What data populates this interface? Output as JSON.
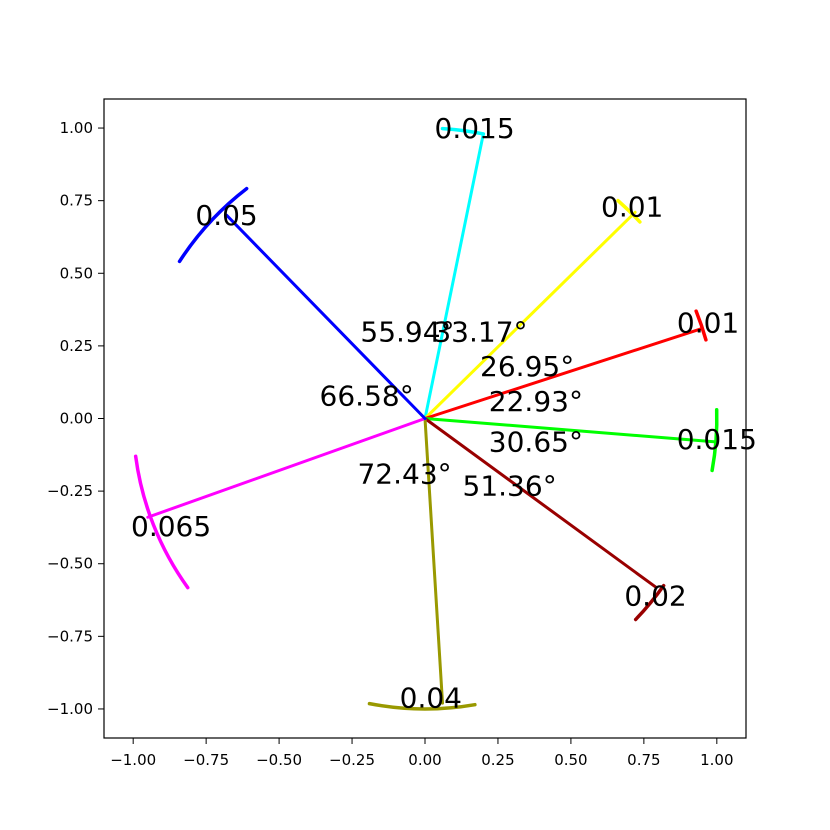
{
  "chart_data": {
    "type": "line",
    "xlim": [
      -1.1,
      1.1
    ],
    "ylim": [
      -1.1,
      1.1
    ],
    "x_ticks": [
      -1.0,
      -0.75,
      -0.5,
      -0.25,
      0.0,
      0.25,
      0.5,
      0.75,
      1.0
    ],
    "y_ticks": [
      1.0,
      0.75,
      0.5,
      0.25,
      0.0,
      -0.25,
      -0.5,
      -0.75,
      -1.0
    ],
    "x_tick_labels": [
      "−1.00",
      "−0.75",
      "−0.50",
      "−0.25",
      "0.00",
      "0.25",
      "0.50",
      "0.75",
      "1.00"
    ],
    "y_tick_labels": [
      "1.00",
      "0.75",
      "0.50",
      "0.25",
      "0.00",
      "−0.25",
      "−0.50",
      "−0.75",
      "−1.00"
    ],
    "grid": false,
    "rays": [
      {
        "color": "#00ffff",
        "end": [
          0.2,
          0.98
        ],
        "arc": [
          [
            0.06,
            1.0
          ],
          [
            0.2,
            0.98
          ]
        ],
        "arc_label": "0.015",
        "arc_label_pos": [
          0.17,
          1.0
        ]
      },
      {
        "color": "#ffff00",
        "end": [
          0.72,
          0.71
        ],
        "arc": [
          [
            0.67,
            0.76
          ],
          [
            0.74,
            0.68
          ]
        ],
        "arc_label": "0.01",
        "arc_label_pos": [
          0.71,
          0.73
        ]
      },
      {
        "color": "#ff0000",
        "end": [
          0.95,
          0.31
        ],
        "arc": [
          [
            0.93,
            0.37
          ],
          [
            0.96,
            0.27
          ]
        ],
        "arc_label": "0.01",
        "arc_label_pos": [
          0.97,
          0.33
        ]
      },
      {
        "color": "#00ff00",
        "end": [
          0.99,
          -0.08
        ],
        "arc": [
          [
            1.0,
            0.03
          ],
          [
            0.99,
            -0.18
          ]
        ],
        "arc_label": "0.015",
        "arc_label_pos": [
          1.0,
          -0.07
        ]
      },
      {
        "color": "#990000",
        "end": [
          0.79,
          -0.58
        ],
        "arc": [
          [
            0.81,
            -0.57
          ],
          [
            0.72,
            -0.69
          ]
        ],
        "arc_label": "0.02",
        "arc_label_pos": [
          0.79,
          -0.61
        ]
      },
      {
        "color": "#999900",
        "end": [
          0.06,
          -0.98
        ],
        "arc": [
          [
            -0.19,
            -0.98
          ],
          [
            0.17,
            -0.98
          ]
        ],
        "arc_label": "0.04",
        "arc_label_pos": [
          0.02,
          -0.96
        ]
      },
      {
        "color": "#ff00ff",
        "end": [
          -0.95,
          -0.34
        ],
        "arc": [
          [
            -0.99,
            -0.13
          ],
          [
            -0.81,
            -0.58
          ]
        ],
        "arc_label": "0.065",
        "arc_label_pos": [
          -0.87,
          -0.37
        ]
      },
      {
        "color": "#0000ff",
        "end": [
          -0.68,
          0.7
        ],
        "arc": [
          [
            -0.84,
            0.54
          ],
          [
            -0.61,
            0.79
          ]
        ],
        "arc_label": "0.05",
        "arc_label_pos": [
          -0.68,
          0.7
        ]
      }
    ],
    "angle_labels": [
      {
        "text": "55.94°",
        "pos": [
          -0.06,
          0.3
        ]
      },
      {
        "text": "33.17°",
        "pos": [
          0.19,
          0.3
        ]
      },
      {
        "text": "26.95°",
        "pos": [
          0.35,
          0.18
        ]
      },
      {
        "text": "22.93°",
        "pos": [
          0.38,
          0.06
        ]
      },
      {
        "text": "66.58°",
        "pos": [
          -0.2,
          0.08
        ]
      },
      {
        "text": "30.65°",
        "pos": [
          0.38,
          -0.08
        ]
      },
      {
        "text": "72.43°",
        "pos": [
          -0.07,
          -0.19
        ]
      },
      {
        "text": "51.36°",
        "pos": [
          0.29,
          -0.23
        ]
      }
    ]
  }
}
